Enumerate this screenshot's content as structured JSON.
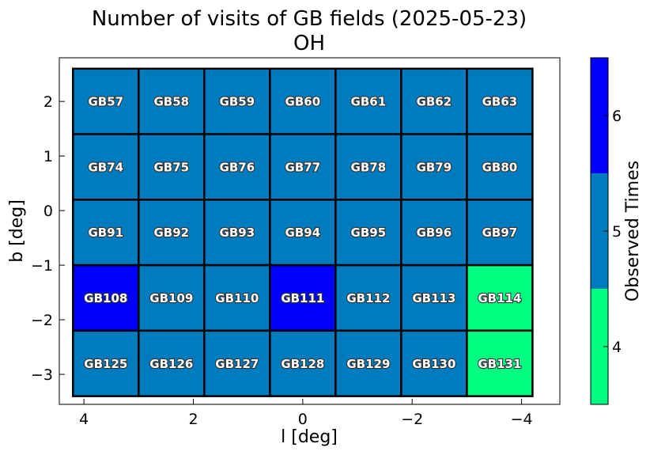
{
  "chart_data": {
    "type": "heatmap",
    "title": "Number of visits of GB fields (2025-05-23)",
    "subtitle": "OH",
    "xlabel": "l [deg]",
    "ylabel": "b [deg]",
    "xlim": [
      4.45,
      -4.7
    ],
    "ylim": [
      -3.55,
      2.8
    ],
    "xticks": [
      4,
      2,
      0,
      -2,
      -4
    ],
    "xtick_labels": [
      "4",
      "2",
      "0",
      "−2",
      "−4"
    ],
    "yticks": [
      2,
      1,
      0,
      -1,
      -2,
      -3
    ],
    "ytick_labels": [
      "2",
      "1",
      "0",
      "−1",
      "−2",
      "−3"
    ],
    "grid": false,
    "colorbar": {
      "label": "Observed Times",
      "range": [
        3.5,
        6.5
      ],
      "ticks": [
        4,
        5,
        6
      ],
      "tick_labels": [
        "4",
        "5",
        "6"
      ],
      "bins": [
        {
          "value": 4,
          "color": "#00ff80"
        },
        {
          "value": 5,
          "color": "#007bbd"
        },
        {
          "value": 6,
          "color": "#0000ff"
        }
      ]
    },
    "columns_l": [
      3.6,
      2.4,
      1.2,
      0.0,
      -1.2,
      -2.4,
      -3.6
    ],
    "rows_b": [
      2.0,
      0.8,
      -0.4,
      -1.6,
      -2.8
    ],
    "fields": [
      {
        "name": "GB57",
        "l": 3.6,
        "b": 2.0,
        "visits": 5
      },
      {
        "name": "GB58",
        "l": 2.4,
        "b": 2.0,
        "visits": 5
      },
      {
        "name": "GB59",
        "l": 1.2,
        "b": 2.0,
        "visits": 5
      },
      {
        "name": "GB60",
        "l": 0.0,
        "b": 2.0,
        "visits": 5
      },
      {
        "name": "GB61",
        "l": -1.2,
        "b": 2.0,
        "visits": 5
      },
      {
        "name": "GB62",
        "l": -2.4,
        "b": 2.0,
        "visits": 5
      },
      {
        "name": "GB63",
        "l": -3.6,
        "b": 2.0,
        "visits": 5
      },
      {
        "name": "GB74",
        "l": 3.6,
        "b": 0.8,
        "visits": 5
      },
      {
        "name": "GB75",
        "l": 2.4,
        "b": 0.8,
        "visits": 5
      },
      {
        "name": "GB76",
        "l": 1.2,
        "b": 0.8,
        "visits": 5
      },
      {
        "name": "GB77",
        "l": 0.0,
        "b": 0.8,
        "visits": 5
      },
      {
        "name": "GB78",
        "l": -1.2,
        "b": 0.8,
        "visits": 5
      },
      {
        "name": "GB79",
        "l": -2.4,
        "b": 0.8,
        "visits": 5
      },
      {
        "name": "GB80",
        "l": -3.6,
        "b": 0.8,
        "visits": 5
      },
      {
        "name": "GB91",
        "l": 3.6,
        "b": -0.4,
        "visits": 5
      },
      {
        "name": "GB92",
        "l": 2.4,
        "b": -0.4,
        "visits": 5
      },
      {
        "name": "GB93",
        "l": 1.2,
        "b": -0.4,
        "visits": 5
      },
      {
        "name": "GB94",
        "l": 0.0,
        "b": -0.4,
        "visits": 5
      },
      {
        "name": "GB95",
        "l": -1.2,
        "b": -0.4,
        "visits": 5
      },
      {
        "name": "GB96",
        "l": -2.4,
        "b": -0.4,
        "visits": 5
      },
      {
        "name": "GB97",
        "l": -3.6,
        "b": -0.4,
        "visits": 5
      },
      {
        "name": "GB108",
        "l": 3.6,
        "b": -1.6,
        "visits": 6
      },
      {
        "name": "GB109",
        "l": 2.4,
        "b": -1.6,
        "visits": 5
      },
      {
        "name": "GB110",
        "l": 1.2,
        "b": -1.6,
        "visits": 5
      },
      {
        "name": "GB111",
        "l": 0.0,
        "b": -1.6,
        "visits": 6
      },
      {
        "name": "GB112",
        "l": -1.2,
        "b": -1.6,
        "visits": 5
      },
      {
        "name": "GB113",
        "l": -2.4,
        "b": -1.6,
        "visits": 5
      },
      {
        "name": "GB114",
        "l": -3.6,
        "b": -1.6,
        "visits": 4
      },
      {
        "name": "GB125",
        "l": 3.6,
        "b": -2.8,
        "visits": 5
      },
      {
        "name": "GB126",
        "l": 2.4,
        "b": -2.8,
        "visits": 5
      },
      {
        "name": "GB127",
        "l": 1.2,
        "b": -2.8,
        "visits": 5
      },
      {
        "name": "GB128",
        "l": 0.0,
        "b": -2.8,
        "visits": 5
      },
      {
        "name": "GB129",
        "l": -1.2,
        "b": -2.8,
        "visits": 5
      },
      {
        "name": "GB130",
        "l": -2.4,
        "b": -2.8,
        "visits": 5
      },
      {
        "name": "GB131",
        "l": -3.6,
        "b": -2.8,
        "visits": 4
      }
    ]
  }
}
